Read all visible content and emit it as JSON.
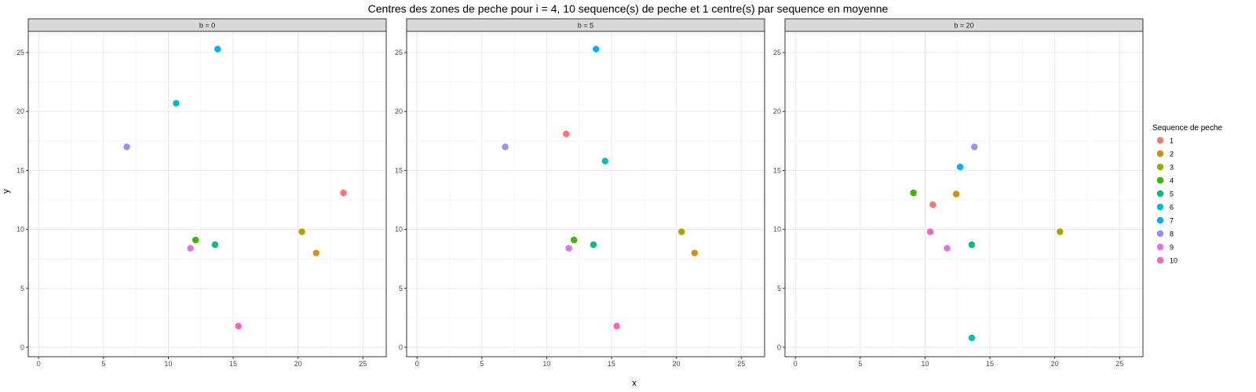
{
  "chart_data": {
    "type": "scatter",
    "title": "Centres des zones de peche pour i = 4, 10 sequence(s) de peche et 1 centre(s) par sequence en moyenne",
    "xlabel": "x",
    "ylabel": "y",
    "xlim": [
      -0.8,
      26.8
    ],
    "ylim": [
      -0.8,
      26.8
    ],
    "x_ticks": [
      0,
      5,
      10,
      15,
      20,
      25
    ],
    "y_ticks": [
      0,
      5,
      10,
      15,
      20,
      25
    ],
    "grid": true,
    "legend": {
      "title": "Sequence de peche",
      "placement": "right",
      "entries": [
        "1",
        "2",
        "3",
        "4",
        "5",
        "6",
        "7",
        "8",
        "9",
        "10"
      ],
      "colors": [
        "#F8766D",
        "#D89000",
        "#A3A500",
        "#39B600",
        "#00BF7D",
        "#00BFC4",
        "#00B0F6",
        "#9590FF",
        "#E76BF3",
        "#FF62BC"
      ]
    },
    "panels": [
      {
        "label": "b = 0",
        "points": [
          {
            "seq": 1,
            "x": 23.5,
            "y": 13.1
          },
          {
            "seq": 2,
            "x": 21.4,
            "y": 8.0
          },
          {
            "seq": 3,
            "x": 20.3,
            "y": 9.8
          },
          {
            "seq": 4,
            "x": 12.1,
            "y": 9.1
          },
          {
            "seq": 5,
            "x": 13.6,
            "y": 8.7
          },
          {
            "seq": 6,
            "x": 10.6,
            "y": 20.7
          },
          {
            "seq": 7,
            "x": 13.8,
            "y": 25.3
          },
          {
            "seq": 8,
            "x": 6.8,
            "y": 17.0
          },
          {
            "seq": 9,
            "x": 11.7,
            "y": 8.4
          },
          {
            "seq": 10,
            "x": 15.4,
            "y": 1.8
          }
        ]
      },
      {
        "label": "b = 5",
        "points": [
          {
            "seq": 1,
            "x": 11.5,
            "y": 18.1
          },
          {
            "seq": 2,
            "x": 21.4,
            "y": 8.0
          },
          {
            "seq": 3,
            "x": 20.4,
            "y": 9.8
          },
          {
            "seq": 4,
            "x": 12.1,
            "y": 9.1
          },
          {
            "seq": 5,
            "x": 13.6,
            "y": 8.7
          },
          {
            "seq": 6,
            "x": 14.5,
            "y": 15.8
          },
          {
            "seq": 7,
            "x": 13.8,
            "y": 25.3
          },
          {
            "seq": 8,
            "x": 6.8,
            "y": 17.0
          },
          {
            "seq": 9,
            "x": 11.7,
            "y": 8.4
          },
          {
            "seq": 10,
            "x": 15.4,
            "y": 1.8
          }
        ]
      },
      {
        "label": "b = 20",
        "points": [
          {
            "seq": 1,
            "x": 10.6,
            "y": 12.1
          },
          {
            "seq": 2,
            "x": 12.4,
            "y": 13.0
          },
          {
            "seq": 3,
            "x": 20.4,
            "y": 9.8
          },
          {
            "seq": 4,
            "x": 9.1,
            "y": 13.1
          },
          {
            "seq": 5,
            "x": 13.6,
            "y": 8.7
          },
          {
            "seq": 6,
            "x": 13.6,
            "y": 0.8
          },
          {
            "seq": 7,
            "x": 12.7,
            "y": 15.3
          },
          {
            "seq": 8,
            "x": 13.8,
            "y": 17.0
          },
          {
            "seq": 9,
            "x": 11.7,
            "y": 8.4
          },
          {
            "seq": 10,
            "x": 10.4,
            "y": 9.8
          }
        ]
      }
    ]
  }
}
